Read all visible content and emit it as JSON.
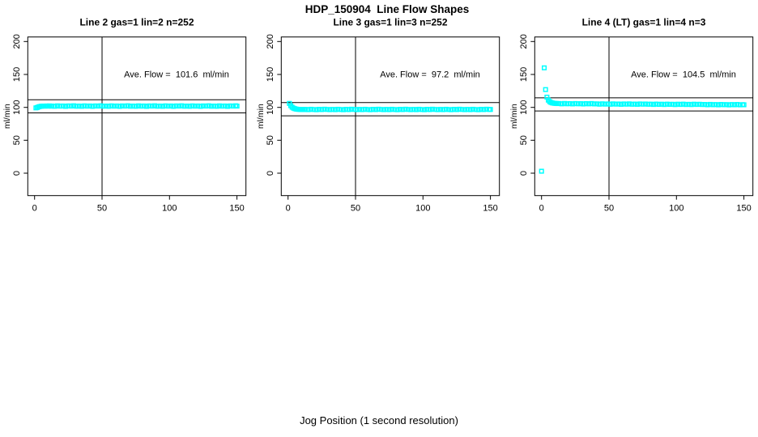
{
  "figure": {
    "title": "HDP_150904  Line Flow Shapes",
    "xlabel": "Jog Position (1 second resolution)",
    "background": "#FFFFFF",
    "point_color": "#00FFFF",
    "axis_color": "#000000"
  },
  "chart_data": [
    {
      "type": "scatter",
      "title": "Line 2 gas=1 lin=2 n=252",
      "ylabel": "ml/min",
      "annotation": "Ave. Flow =  101.6  ml/min",
      "ave_flow": 101.6,
      "ref_lines": {
        "h_upper": 111.6,
        "h_lower": 91.6,
        "v_x": 50
      },
      "xlim": [
        -6,
        157
      ],
      "ylim": [
        -34,
        207
      ],
      "xticks": [
        0,
        50,
        100,
        150
      ],
      "yticks": [
        0,
        50,
        100,
        150,
        200
      ],
      "grid": false,
      "points": [
        [
          1,
          99.2
        ],
        [
          2,
          99.8
        ],
        [
          3,
          100.7
        ],
        [
          4,
          101.3
        ],
        [
          5,
          101.7
        ],
        [
          6,
          101.9
        ],
        [
          7,
          102
        ],
        [
          8,
          101.8
        ],
        [
          9,
          102.1
        ],
        [
          10,
          101.9
        ],
        [
          11,
          102.2
        ],
        [
          12,
          101.8
        ],
        [
          13,
          102
        ],
        [
          15,
          101.6
        ],
        [
          17,
          102.3
        ],
        [
          19,
          101.8
        ],
        [
          21,
          102.1
        ],
        [
          23,
          101.5
        ],
        [
          25,
          102.2
        ],
        [
          27,
          101.9
        ],
        [
          29,
          102.4
        ],
        [
          31,
          101.7
        ],
        [
          33,
          102
        ],
        [
          35,
          101.6
        ],
        [
          37,
          102.3
        ],
        [
          39,
          101.8
        ],
        [
          41,
          102.1
        ],
        [
          43,
          101.5
        ],
        [
          45,
          102.2
        ],
        [
          47,
          101.9
        ],
        [
          49,
          102.4
        ],
        [
          51,
          101.7
        ],
        [
          53,
          102
        ],
        [
          55,
          101.6
        ],
        [
          57,
          102.3
        ],
        [
          59,
          101.8
        ],
        [
          61,
          102.1
        ],
        [
          63,
          101.5
        ],
        [
          65,
          102.2
        ],
        [
          67,
          101.9
        ],
        [
          69,
          102.4
        ],
        [
          71,
          101.7
        ],
        [
          73,
          102
        ],
        [
          75,
          101.6
        ],
        [
          77,
          102.3
        ],
        [
          79,
          101.8
        ],
        [
          81,
          102.1
        ],
        [
          83,
          101.5
        ],
        [
          85,
          102.2
        ],
        [
          87,
          101.9
        ],
        [
          89,
          102.4
        ],
        [
          91,
          101.7
        ],
        [
          93,
          102
        ],
        [
          95,
          101.6
        ],
        [
          97,
          102.3
        ],
        [
          99,
          101.8
        ],
        [
          101,
          102.1
        ],
        [
          103,
          101.5
        ],
        [
          105,
          102.2
        ],
        [
          107,
          101.9
        ],
        [
          109,
          102.4
        ],
        [
          111,
          101.7
        ],
        [
          113,
          102
        ],
        [
          115,
          101.6
        ],
        [
          117,
          102.3
        ],
        [
          119,
          101.8
        ],
        [
          121,
          102.1
        ],
        [
          123,
          101.5
        ],
        [
          125,
          102.2
        ],
        [
          127,
          101.9
        ],
        [
          129,
          102.4
        ],
        [
          131,
          101.7
        ],
        [
          133,
          102
        ],
        [
          135,
          101.6
        ],
        [
          137,
          102.3
        ],
        [
          139,
          101.8
        ],
        [
          141,
          102.1
        ],
        [
          143,
          101.5
        ],
        [
          145,
          102.2
        ],
        [
          147,
          101.9
        ],
        [
          149,
          102.4
        ],
        [
          150,
          101.9
        ]
      ]
    },
    {
      "type": "scatter",
      "title": "Line 3 gas=1 lin=3 n=252",
      "ylabel": "ml/min",
      "annotation": "Ave. Flow =  97.2  ml/min",
      "ave_flow": 97.2,
      "ref_lines": {
        "h_upper": 107.2,
        "h_lower": 87.2,
        "v_x": 50
      },
      "xlim": [
        -6,
        157
      ],
      "ylim": [
        -34,
        207
      ],
      "xticks": [
        0,
        50,
        100,
        150
      ],
      "yticks": [
        0,
        50,
        100,
        150,
        200
      ],
      "grid": false,
      "points": [
        [
          1,
          106
        ],
        [
          2,
          102.5
        ],
        [
          3,
          100.2
        ],
        [
          4,
          98.8
        ],
        [
          5,
          98
        ],
        [
          6,
          97.4
        ],
        [
          7,
          97.1
        ],
        [
          8,
          96.9
        ],
        [
          9,
          96.8
        ],
        [
          10,
          96.7
        ],
        [
          11,
          96.8
        ],
        [
          12,
          96.6
        ],
        [
          13,
          96.9
        ],
        [
          15,
          96.5
        ],
        [
          17,
          97.1
        ],
        [
          19,
          96.7
        ],
        [
          21,
          96.4
        ],
        [
          23,
          97
        ],
        [
          25,
          96.6
        ],
        [
          27,
          97.2
        ],
        [
          29,
          96.8
        ],
        [
          31,
          96.5
        ],
        [
          33,
          96.9
        ],
        [
          35,
          96.5
        ],
        [
          37,
          97.1
        ],
        [
          39,
          96.7
        ],
        [
          41,
          96.4
        ],
        [
          43,
          97
        ],
        [
          45,
          96.6
        ],
        [
          47,
          97.2
        ],
        [
          49,
          96.8
        ],
        [
          51,
          96.5
        ],
        [
          53,
          96.9
        ],
        [
          55,
          96.5
        ],
        [
          57,
          97.1
        ],
        [
          59,
          96.7
        ],
        [
          61,
          96.4
        ],
        [
          63,
          97
        ],
        [
          65,
          96.6
        ],
        [
          67,
          97.2
        ],
        [
          69,
          96.8
        ],
        [
          71,
          96.5
        ],
        [
          73,
          96.9
        ],
        [
          75,
          96.5
        ],
        [
          77,
          97.1
        ],
        [
          79,
          96.7
        ],
        [
          81,
          96.4
        ],
        [
          83,
          97
        ],
        [
          85,
          96.6
        ],
        [
          87,
          97.2
        ],
        [
          89,
          96.8
        ],
        [
          91,
          96.5
        ],
        [
          93,
          96.9
        ],
        [
          95,
          96.5
        ],
        [
          97,
          97.1
        ],
        [
          99,
          96.7
        ],
        [
          101,
          96.4
        ],
        [
          103,
          97
        ],
        [
          105,
          96.6
        ],
        [
          107,
          97.2
        ],
        [
          109,
          96.8
        ],
        [
          111,
          96.5
        ],
        [
          113,
          96.9
        ],
        [
          115,
          96.5
        ],
        [
          117,
          97.1
        ],
        [
          119,
          96.7
        ],
        [
          121,
          96.4
        ],
        [
          123,
          97
        ],
        [
          125,
          96.6
        ],
        [
          127,
          97.2
        ],
        [
          129,
          96.8
        ],
        [
          131,
          96.5
        ],
        [
          133,
          96.9
        ],
        [
          135,
          96.5
        ],
        [
          137,
          97.1
        ],
        [
          139,
          96.7
        ],
        [
          141,
          96.4
        ],
        [
          143,
          97
        ],
        [
          145,
          96.6
        ],
        [
          147,
          97.2
        ],
        [
          149,
          96.8
        ],
        [
          150,
          96.8
        ]
      ]
    },
    {
      "type": "scatter",
      "title": "Line 4 (LT) gas=1 lin=4 n=3",
      "ylabel": "ml/min",
      "annotation": "Ave. Flow =  104.5  ml/min",
      "ave_flow": 104.5,
      "ref_lines": {
        "h_upper": 114.5,
        "h_lower": 94.5,
        "v_x": 50
      },
      "xlim": [
        -6,
        157
      ],
      "ylim": [
        -34,
        207
      ],
      "xticks": [
        0,
        50,
        100,
        150
      ],
      "yticks": [
        0,
        50,
        100,
        150,
        200
      ],
      "grid": false,
      "points": [
        [
          0,
          3
        ],
        [
          2,
          160
        ],
        [
          3,
          127
        ],
        [
          4,
          115.5
        ],
        [
          5,
          111
        ],
        [
          6,
          108.7
        ],
        [
          7,
          107.4
        ],
        [
          8,
          106.7
        ],
        [
          9,
          106.3
        ],
        [
          10,
          106
        ],
        [
          11,
          105.9
        ],
        [
          12,
          105.7
        ],
        [
          13,
          105.8
        ],
        [
          15,
          105.3
        ],
        [
          17,
          105.9
        ],
        [
          19,
          105.4
        ],
        [
          21,
          105.7
        ],
        [
          23,
          105.2
        ],
        [
          25,
          105.8
        ],
        [
          27,
          105.4
        ],
        [
          29,
          105.6
        ],
        [
          31,
          105.1
        ],
        [
          33,
          105.7
        ],
        [
          35,
          105.3
        ],
        [
          37,
          105.8
        ],
        [
          39,
          105.2
        ],
        [
          41,
          105.3
        ],
        [
          43,
          104.8
        ],
        [
          45,
          105.4
        ],
        [
          47,
          104.9
        ],
        [
          49,
          105.2
        ],
        [
          51,
          104.7
        ],
        [
          53,
          105.3
        ],
        [
          55,
          104.9
        ],
        [
          57,
          105.1
        ],
        [
          59,
          104.6
        ],
        [
          61,
          105.2
        ],
        [
          63,
          104.8
        ],
        [
          65,
          105.3
        ],
        [
          67,
          104.7
        ],
        [
          69,
          105
        ],
        [
          71,
          104.6
        ],
        [
          73,
          105.2
        ],
        [
          75,
          104.8
        ],
        [
          77,
          105.1
        ],
        [
          79,
          104.7
        ],
        [
          81,
          104.9
        ],
        [
          83,
          104.4
        ],
        [
          85,
          105
        ],
        [
          87,
          104.5
        ],
        [
          89,
          104.8
        ],
        [
          91,
          104.3
        ],
        [
          93,
          104.9
        ],
        [
          95,
          104.5
        ],
        [
          97,
          104.7
        ],
        [
          99,
          104.2
        ],
        [
          101,
          104.8
        ],
        [
          103,
          104.4
        ],
        [
          105,
          104.9
        ],
        [
          107,
          104.3
        ],
        [
          109,
          104.6
        ],
        [
          111,
          104.2
        ],
        [
          113,
          104.8
        ],
        [
          115,
          104.4
        ],
        [
          117,
          104.7
        ],
        [
          119,
          104.3
        ],
        [
          121,
          104.4
        ],
        [
          123,
          103.9
        ],
        [
          125,
          104.5
        ],
        [
          127,
          104
        ],
        [
          129,
          104.3
        ],
        [
          131,
          103.8
        ],
        [
          133,
          104.4
        ],
        [
          135,
          104
        ],
        [
          137,
          104.2
        ],
        [
          139,
          103.7
        ],
        [
          141,
          104.3
        ],
        [
          143,
          103.9
        ],
        [
          145,
          104.4
        ],
        [
          147,
          103.8
        ],
        [
          149,
          104.1
        ],
        [
          150,
          103.9
        ]
      ]
    }
  ]
}
